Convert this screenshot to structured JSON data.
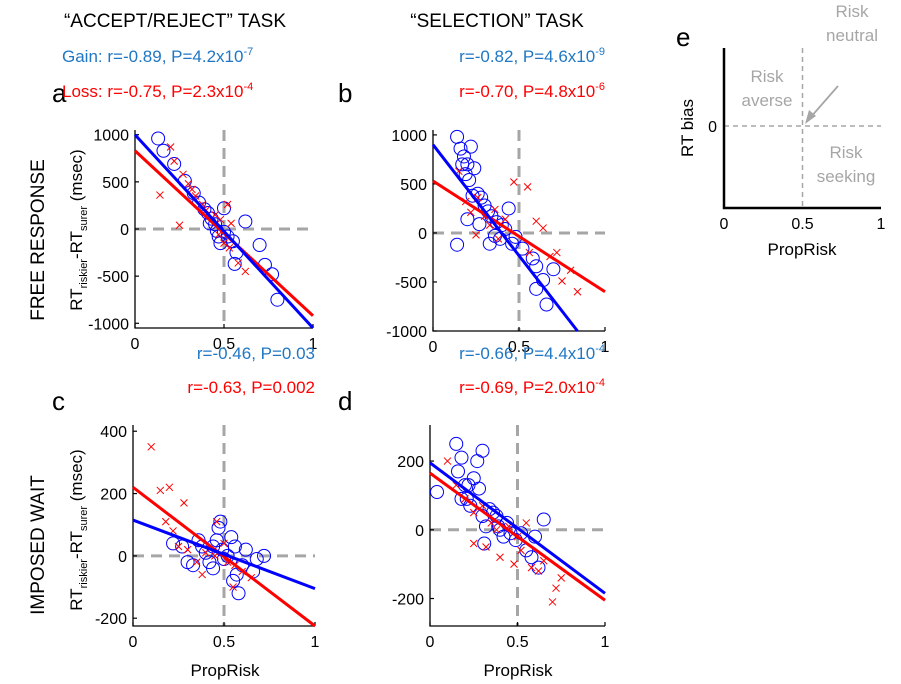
{
  "columns": {
    "left": "“ACCEPT/REJECT” TASK",
    "right": "“SELECTION” TASK"
  },
  "rows": {
    "top": "FREE RESPONSE",
    "bottom": "IMPOSED WAIT"
  },
  "y_axis_label": {
    "main": "RT",
    "sub1": "riskier",
    "dash": "-RT",
    "sub2": "surer",
    "unit": " (msec)"
  },
  "x_axis_label": "PropRisk",
  "colors": {
    "gain": "#0000ff",
    "loss": "#ff0000",
    "gain_text": "#1f77c4",
    "loss_text": "#ff0000",
    "ref": "#a6a6a6"
  },
  "chart_data": [
    {
      "panel": "a",
      "type": "scatter",
      "xlim": [
        0,
        1
      ],
      "ylim": [
        -1050,
        1050
      ],
      "xticks": [
        "0",
        "0.5",
        "1"
      ],
      "yticks": [
        "1000",
        "500",
        "0",
        "-500",
        "-1000"
      ],
      "ytick_values": [
        1000,
        500,
        0,
        -500,
        -1000
      ],
      "stats": [
        {
          "prefix": "Gain:  ",
          "text": "r=-0.89, P=4.2x10",
          "exp": "-7",
          "series": "gain"
        },
        {
          "prefix": "Loss:  ",
          "text": "r=-0.75, P=2.3x10",
          "exp": "-4",
          "series": "loss"
        }
      ],
      "series": [
        {
          "name": "Gain",
          "marker": "circle",
          "line": [
            [
              0,
              1000
            ],
            [
              1,
              -1050
            ]
          ],
          "points": [
            [
              0.13,
              960
            ],
            [
              0.16,
              830
            ],
            [
              0.22,
              690
            ],
            [
              0.28,
              510
            ],
            [
              0.33,
              380
            ],
            [
              0.36,
              280
            ],
            [
              0.39,
              210
            ],
            [
              0.41,
              170
            ],
            [
              0.43,
              110
            ],
            [
              0.45,
              50
            ],
            [
              0.46,
              -20
            ],
            [
              0.47,
              -80
            ],
            [
              0.48,
              -150
            ],
            [
              0.42,
              60
            ],
            [
              0.5,
              220
            ],
            [
              0.52,
              -80
            ],
            [
              0.55,
              -130
            ],
            [
              0.57,
              -250
            ],
            [
              0.56,
              -370
            ],
            [
              0.62,
              80
            ],
            [
              0.7,
              -170
            ],
            [
              0.73,
              -380
            ],
            [
              0.77,
              -480
            ],
            [
              0.8,
              -750
            ],
            [
              0.5,
              -30
            ]
          ]
        },
        {
          "name": "Loss",
          "marker": "x",
          "line": [
            [
              0,
              830
            ],
            [
              1,
              -920
            ]
          ],
          "points": [
            [
              0.14,
              360
            ],
            [
              0.2,
              870
            ],
            [
              0.22,
              720
            ],
            [
              0.27,
              580
            ],
            [
              0.3,
              480
            ],
            [
              0.32,
              420
            ],
            [
              0.34,
              350
            ],
            [
              0.38,
              260
            ],
            [
              0.4,
              200
            ],
            [
              0.45,
              150
            ],
            [
              0.48,
              100
            ],
            [
              0.5,
              -150
            ],
            [
              0.52,
              260
            ],
            [
              0.54,
              60
            ],
            [
              0.58,
              -360
            ],
            [
              0.62,
              -450
            ],
            [
              0.25,
              40
            ],
            [
              0.47,
              -60
            ],
            [
              0.53,
              -200
            ]
          ]
        }
      ]
    },
    {
      "panel": "b",
      "type": "scatter",
      "xlim": [
        0,
        1
      ],
      "ylim": [
        -1000,
        1050
      ],
      "xticks": [
        "0",
        "0.5",
        "1"
      ],
      "yticks": [
        "1000",
        "500",
        "0",
        "-500",
        "-1000"
      ],
      "ytick_values": [
        1000,
        500,
        0,
        -500,
        -1000
      ],
      "stats": [
        {
          "prefix": "",
          "text": "r=-0.82, P=4.6x10",
          "exp": "-9",
          "series": "gain"
        },
        {
          "prefix": "",
          "text": "r=-0.70, P=4.8x10",
          "exp": "-6",
          "series": "loss"
        }
      ],
      "series": [
        {
          "name": "Gain",
          "marker": "circle",
          "line": [
            [
              0,
              900
            ],
            [
              0.84,
              -1000
            ]
          ],
          "points": [
            [
              0.14,
              980
            ],
            [
              0.16,
              860
            ],
            [
              0.18,
              780
            ],
            [
              0.2,
              700
            ],
            [
              0.22,
              880
            ],
            [
              0.24,
              660
            ],
            [
              0.17,
              700
            ],
            [
              0.21,
              540
            ],
            [
              0.26,
              400
            ],
            [
              0.28,
              360
            ],
            [
              0.3,
              280
            ],
            [
              0.32,
              220
            ],
            [
              0.34,
              170
            ],
            [
              0.2,
              140
            ],
            [
              0.37,
              110
            ],
            [
              0.4,
              80
            ],
            [
              0.42,
              40
            ],
            [
              0.36,
              -30
            ],
            [
              0.39,
              -60
            ],
            [
              0.33,
              -110
            ],
            [
              0.46,
              -110
            ],
            [
              0.52,
              -160
            ],
            [
              0.58,
              -260
            ],
            [
              0.6,
              -340
            ],
            [
              0.64,
              -480
            ],
            [
              0.66,
              -730
            ],
            [
              0.7,
              -370
            ],
            [
              0.6,
              -570
            ],
            [
              0.14,
              -120
            ],
            [
              0.44,
              250
            ],
            [
              0.48,
              -40
            ],
            [
              0.23,
              380
            ],
            [
              0.19,
              600
            ],
            [
              0.27,
              90
            ]
          ]
        },
        {
          "name": "Loss",
          "marker": "x",
          "line": [
            [
              0,
              530
            ],
            [
              1,
              -600
            ]
          ],
          "points": [
            [
              0.15,
              630
            ],
            [
              0.19,
              320
            ],
            [
              0.22,
              210
            ],
            [
              0.26,
              360
            ],
            [
              0.3,
              170
            ],
            [
              0.33,
              80
            ],
            [
              0.36,
              240
            ],
            [
              0.42,
              140
            ],
            [
              0.47,
              520
            ],
            [
              0.55,
              470
            ],
            [
              0.6,
              120
            ],
            [
              0.64,
              50
            ],
            [
              0.68,
              -240
            ],
            [
              0.72,
              -200
            ],
            [
              0.75,
              -490
            ],
            [
              0.8,
              -380
            ],
            [
              0.84,
              -600
            ],
            [
              0.56,
              -200
            ],
            [
              0.38,
              -60
            ],
            [
              0.25,
              -20
            ]
          ]
        }
      ]
    },
    {
      "panel": "c",
      "type": "scatter",
      "xlim": [
        0,
        1
      ],
      "ylim": [
        -225,
        420
      ],
      "xticks": [
        "0",
        "0.5",
        "1"
      ],
      "yticks": [
        "400",
        "200",
        "0",
        "-200"
      ],
      "ytick_values": [
        400,
        200,
        0,
        -200
      ],
      "stats": [
        {
          "prefix": "",
          "text": "r=-0.46, P=0.03",
          "exp": "",
          "series": "gain"
        },
        {
          "prefix": "",
          "text": "r=-0.63, P=0.002",
          "exp": "",
          "series": "loss"
        }
      ],
      "series": [
        {
          "name": "Gain",
          "marker": "circle",
          "line": [
            [
              0,
              115
            ],
            [
              1,
              -105
            ]
          ],
          "points": [
            [
              0.22,
              40
            ],
            [
              0.27,
              30
            ],
            [
              0.3,
              -20
            ],
            [
              0.33,
              -30
            ],
            [
              0.36,
              50
            ],
            [
              0.38,
              30
            ],
            [
              0.4,
              10
            ],
            [
              0.42,
              -20
            ],
            [
              0.44,
              -40
            ],
            [
              0.46,
              50
            ],
            [
              0.47,
              90
            ],
            [
              0.48,
              110
            ],
            [
              0.49,
              20
            ],
            [
              0.5,
              -10
            ],
            [
              0.52,
              0
            ],
            [
              0.54,
              60
            ],
            [
              0.56,
              30
            ],
            [
              0.57,
              -60
            ],
            [
              0.58,
              -120
            ],
            [
              0.6,
              -30
            ],
            [
              0.62,
              20
            ],
            [
              0.66,
              -50
            ],
            [
              0.68,
              -10
            ],
            [
              0.72,
              0
            ],
            [
              0.55,
              -80
            ],
            [
              0.44,
              30
            ]
          ]
        },
        {
          "name": "Loss",
          "marker": "x",
          "line": [
            [
              0,
              220
            ],
            [
              1,
              -225
            ]
          ],
          "points": [
            [
              0.1,
              350
            ],
            [
              0.15,
              210
            ],
            [
              0.2,
              220
            ],
            [
              0.18,
              110
            ],
            [
              0.22,
              80
            ],
            [
              0.25,
              30
            ],
            [
              0.3,
              20
            ],
            [
              0.35,
              -20
            ],
            [
              0.4,
              10
            ],
            [
              0.46,
              110
            ],
            [
              0.5,
              40
            ],
            [
              0.52,
              -20
            ],
            [
              0.56,
              -30
            ],
            [
              0.6,
              -50
            ],
            [
              0.65,
              -70
            ],
            [
              0.38,
              -60
            ],
            [
              0.28,
              170
            ],
            [
              0.45,
              0
            ],
            [
              0.55,
              -100
            ]
          ]
        }
      ]
    },
    {
      "panel": "d",
      "type": "scatter",
      "xlim": [
        0,
        1
      ],
      "ylim": [
        -280,
        305
      ],
      "xticks": [
        "0",
        "0.5",
        "1"
      ],
      "yticks": [
        "200",
        "0",
        "-200"
      ],
      "ytick_values": [
        200,
        0,
        -200
      ],
      "stats": [
        {
          "prefix": "",
          "text": "r=-0.66, P=4.4x10",
          "exp": "-4",
          "series": "gain"
        },
        {
          "prefix": "",
          "text": "r=-0.69, P=2.0x10",
          "exp": "-4",
          "series": "loss"
        }
      ],
      "series": [
        {
          "name": "Gain",
          "marker": "circle",
          "line": [
            [
              0,
              195
            ],
            [
              1,
              -185
            ]
          ],
          "points": [
            [
              0.04,
              110
            ],
            [
              0.15,
              250
            ],
            [
              0.16,
              170
            ],
            [
              0.18,
              210
            ],
            [
              0.2,
              130
            ],
            [
              0.21,
              90
            ],
            [
              0.23,
              70
            ],
            [
              0.25,
              150
            ],
            [
              0.27,
              200
            ],
            [
              0.28,
              120
            ],
            [
              0.3,
              40
            ],
            [
              0.3,
              230
            ],
            [
              0.31,
              -40
            ],
            [
              0.32,
              10
            ],
            [
              0.34,
              60
            ],
            [
              0.36,
              50
            ],
            [
              0.38,
              40
            ],
            [
              0.39,
              10
            ],
            [
              0.4,
              0
            ],
            [
              0.42,
              -20
            ],
            [
              0.44,
              20
            ],
            [
              0.46,
              -10
            ],
            [
              0.49,
              -30
            ],
            [
              0.52,
              -10
            ],
            [
              0.55,
              -60
            ],
            [
              0.58,
              -80
            ],
            [
              0.6,
              -20
            ],
            [
              0.62,
              -110
            ],
            [
              0.65,
              30
            ],
            [
              0.18,
              90
            ],
            [
              0.22,
              130
            ]
          ]
        },
        {
          "name": "Loss",
          "marker": "x",
          "line": [
            [
              0,
              165
            ],
            [
              1,
              -205
            ]
          ],
          "points": [
            [
              0.1,
              200
            ],
            [
              0.15,
              130
            ],
            [
              0.2,
              90
            ],
            [
              0.25,
              50
            ],
            [
              0.3,
              70
            ],
            [
              0.32,
              -50
            ],
            [
              0.35,
              20
            ],
            [
              0.4,
              -80
            ],
            [
              0.45,
              10
            ],
            [
              0.5,
              -20
            ],
            [
              0.52,
              -60
            ],
            [
              0.55,
              20
            ],
            [
              0.58,
              -110
            ],
            [
              0.62,
              -120
            ],
            [
              0.65,
              -90
            ],
            [
              0.7,
              -210
            ],
            [
              0.72,
              -170
            ],
            [
              0.75,
              -140
            ],
            [
              0.25,
              -40
            ],
            [
              0.38,
              0
            ],
            [
              0.48,
              -100
            ]
          ]
        }
      ]
    },
    {
      "panel": "e",
      "type": "diagram",
      "xlim": [
        0,
        1
      ],
      "xticks": [
        "0",
        "0.5",
        "1"
      ],
      "ytick": "0",
      "xlabel": "PropRisk",
      "ylabel": "RT bias",
      "regions": {
        "averse": [
          "Risk",
          "averse"
        ],
        "neutral": [
          "Risk",
          "neutral"
        ],
        "seeking": [
          "Risk",
          "seeking"
        ]
      }
    }
  ]
}
